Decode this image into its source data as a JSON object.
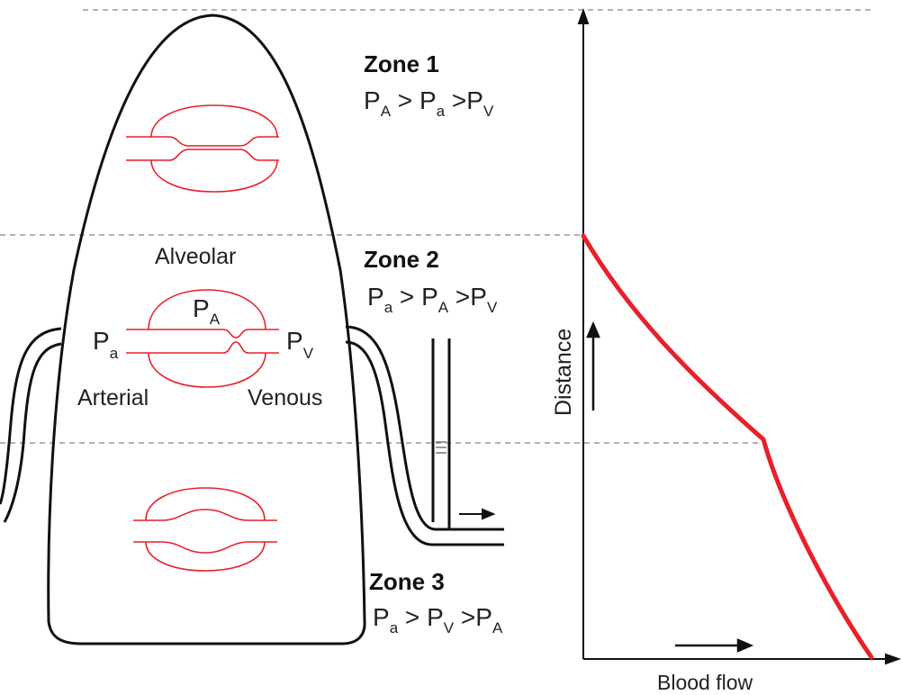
{
  "zones": [
    {
      "title": "Zone 1",
      "eq": {
        "p1": "P",
        "s1": "A",
        "op1": " > ",
        "p2": "P",
        "s2": "a",
        "op2": " >",
        "p3": "P",
        "s3": "V"
      }
    },
    {
      "title": "Zone 2",
      "eq": {
        "p1": "P",
        "s1": "a",
        "op1": " > ",
        "p2": "P",
        "s2": "A",
        "op2": " >",
        "p3": "P",
        "s3": "V"
      }
    },
    {
      "title": "Zone 3",
      "eq": {
        "p1": "P",
        "s1": "a",
        "op1": " > ",
        "p2": "P",
        "s2": "V",
        "op2": " >",
        "p3": "P",
        "s3": "A"
      }
    }
  ],
  "labels": {
    "alveolar": "Alveolar",
    "arterial": "Arterial",
    "venous": "Venous",
    "pa_main": "P",
    "pa_sub": "a",
    "pA_main": "P",
    "pA_sub": "A",
    "pv_main": "P",
    "pv_sub": "V"
  },
  "graph": {
    "ylabel": "Distance",
    "xlabel": "Blood flow",
    "curve_color": "#e8202a"
  }
}
